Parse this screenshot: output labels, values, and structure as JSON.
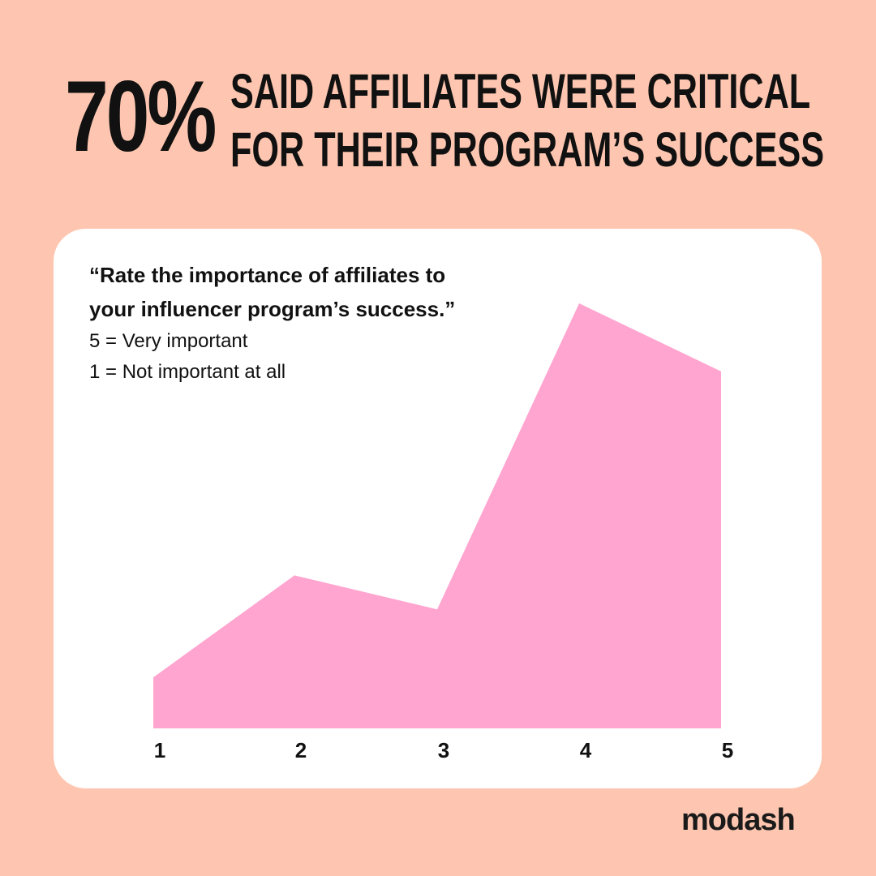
{
  "headline": {
    "stat": "70%",
    "line1": "SAID AFFILIATES WERE CRITICAL",
    "line2": "FOR THEIR PROGRAM’S SUCCESS"
  },
  "card": {
    "question_line1": "“Rate the importance of affiliates to",
    "question_line2": "your influencer program’s success.”",
    "note_high": "5 = Very important",
    "note_low": "1 = Not important at all"
  },
  "brand": {
    "name": "modash"
  },
  "colors": {
    "background": "#fec6b0",
    "card": "#ffffff",
    "area_fill": "#ffa5d0",
    "text": "#111111"
  },
  "chart_data": {
    "type": "area",
    "categories": [
      "1",
      "2",
      "3",
      "4",
      "5"
    ],
    "values": [
      12,
      36,
      28,
      100,
      84
    ],
    "ylim": [
      0,
      100
    ],
    "grid": false,
    "legend": "none",
    "title": "",
    "xlabel": "",
    "ylabel": ""
  }
}
